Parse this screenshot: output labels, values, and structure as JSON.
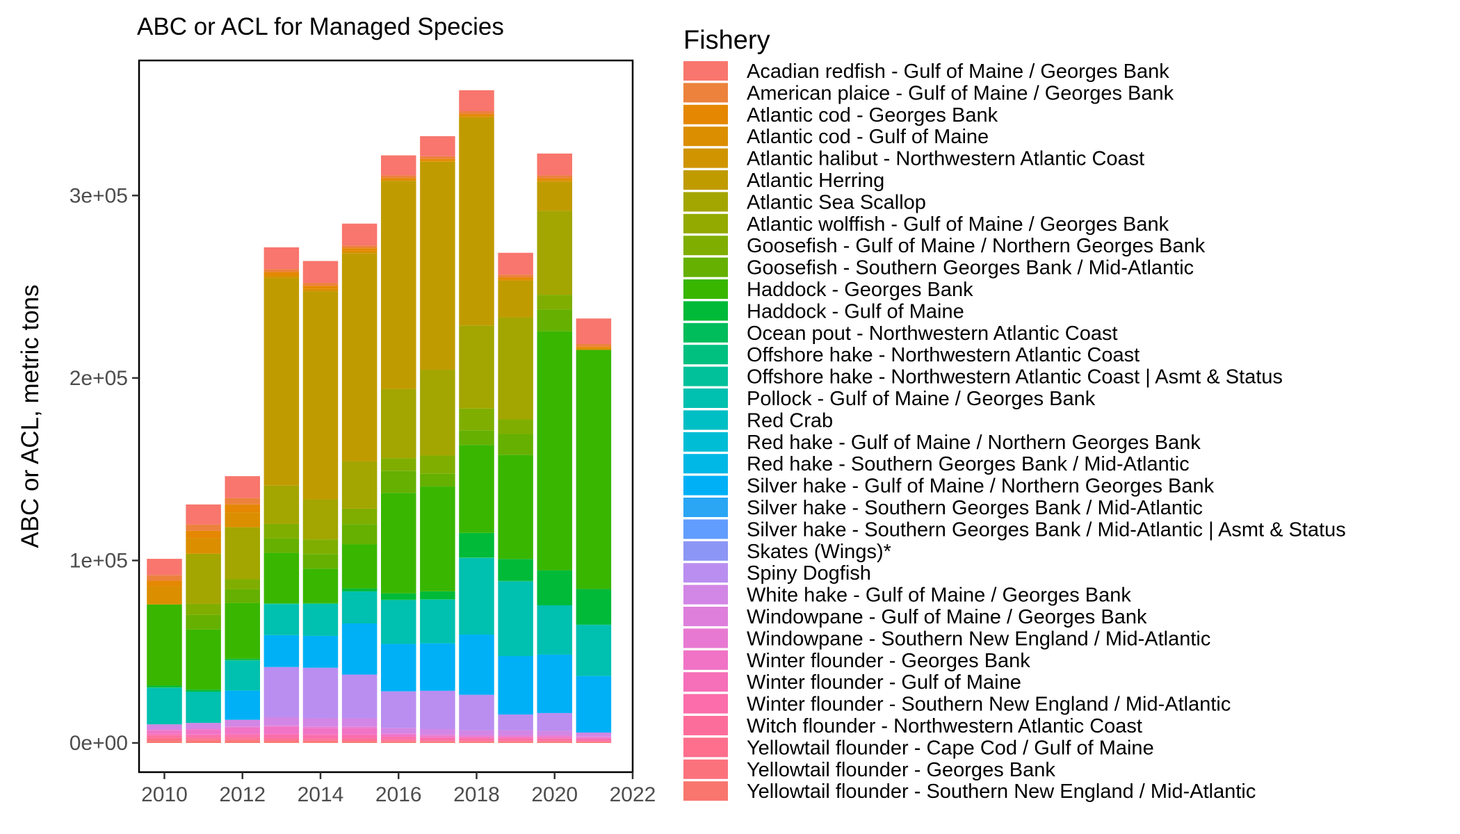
{
  "chart_data": {
    "type": "bar",
    "stacked": true,
    "title": "ABC or ACL for Managed Species",
    "xlabel": "",
    "ylabel": "ABC or ACL, metric tons",
    "x": [
      2010,
      2011,
      2012,
      2013,
      2014,
      2015,
      2016,
      2017,
      2018,
      2019,
      2020,
      2021
    ],
    "xlim": [
      2009.35,
      2022
    ],
    "ylim": [
      -16000,
      374000
    ],
    "x_ticks": [
      2010,
      2012,
      2014,
      2016,
      2018,
      2020,
      2022
    ],
    "x_tick_labels": [
      "2010",
      "2012",
      "2014",
      "2016",
      "2018",
      "2020",
      "2022"
    ],
    "y_ticks": [
      0,
      100000,
      200000,
      300000
    ],
    "y_tick_labels": [
      "0e+00",
      "1e+05",
      "2e+05",
      "3e+05"
    ],
    "grid": false,
    "legend": {
      "title": "Fishery",
      "position": "right"
    },
    "series": [
      {
        "name": "Yellowtail flounder - Southern New England / Mid-Atlantic",
        "color": "#F8766D",
        "values": [
          1000,
          800,
          900,
          700,
          700,
          600,
          500,
          500,
          500,
          500,
          500,
          400
        ]
      },
      {
        "name": "Yellowtail flounder - Georges Bank",
        "color": "#FB727D",
        "values": [
          900,
          800,
          700,
          600,
          500,
          500,
          400,
          300,
          300,
          300,
          300,
          200
        ]
      },
      {
        "name": "Yellowtail flounder - Cape Cod / Gulf of Maine",
        "color": "#FD6F8D",
        "values": [
          900,
          800,
          800,
          800,
          600,
          600,
          500,
          400,
          400,
          400,
          400,
          300
        ]
      },
      {
        "name": "Witch flounder - Northwestern Atlantic Coast",
        "color": "#FD6D9C",
        "values": [
          1100,
          900,
          900,
          900,
          800,
          800,
          600,
          500,
          500,
          500,
          500,
          400
        ]
      },
      {
        "name": "Winter flounder - Southern New England / Mid-Atlantic",
        "color": "#FB6DAB",
        "values": [
          800,
          1000,
          1200,
          1600,
          1700,
          1700,
          1200,
          1000,
          800,
          800,
          700,
          600
        ]
      },
      {
        "name": "Winter flounder - Gulf of Maine",
        "color": "#F66FB9",
        "values": [
          300,
          400,
          500,
          500,
          500,
          500,
          400,
          400,
          400,
          400,
          400,
          400
        ]
      },
      {
        "name": "Winter flounder - Georges Bank",
        "color": "#F073C6",
        "values": [
          1800,
          2500,
          3400,
          3800,
          3500,
          3600,
          1000,
          800,
          600,
          600,
          700,
          600
        ]
      },
      {
        "name": "Windowpane - Southern New England / Mid-Atlantic",
        "color": "#E879D2",
        "values": [
          400,
          400,
          500,
          500,
          500,
          500,
          500,
          500,
          500,
          500,
          500,
          400
        ]
      },
      {
        "name": "Windowpane - Gulf of Maine / Georges Bank",
        "color": "#DE7FDC",
        "values": [
          200,
          200,
          200,
          200,
          200,
          200,
          200,
          200,
          200,
          200,
          200,
          200
        ]
      },
      {
        "name": "White hake - Gulf of Maine / Georges Bank",
        "color": "#D286E5",
        "values": [
          2800,
          3200,
          3600,
          4500,
          4500,
          4500,
          3000,
          3000,
          2700,
          2700,
          2500,
          2200
        ]
      },
      {
        "name": "Spiny Dogfish",
        "color": "#B98EF0",
        "values": [
          0,
          0,
          0,
          27500,
          27700,
          24000,
          20000,
          21000,
          19500,
          8700,
          9700,
          0
        ]
      },
      {
        "name": "Skates (Wings)*",
        "color": "#8C96F5",
        "values": [
          0,
          0,
          0,
          0,
          0,
          0,
          0,
          0,
          0,
          0,
          0,
          0
        ]
      },
      {
        "name": "Silver hake - Southern Georges Bank / Mid-Atlantic | Asmt & Status",
        "color": "#619CFF",
        "values": [
          0,
          0,
          0,
          0,
          0,
          0,
          0,
          0,
          0,
          0,
          0,
          0
        ]
      },
      {
        "name": "Silver hake - Southern Georges Bank / Mid-Atlantic",
        "color": "#2AA6F4",
        "values": [
          0,
          0,
          0,
          0,
          0,
          0,
          0,
          0,
          0,
          0,
          0,
          0
        ]
      },
      {
        "name": "Silver hake - Gulf of Maine / Northern Georges Bank",
        "color": "#00B0F6",
        "values": [
          0,
          0,
          16000,
          17500,
          17500,
          28000,
          26000,
          26000,
          33000,
          32000,
          32000,
          31000
        ]
      },
      {
        "name": "Red hake - Southern Georges Bank / Mid-Atlantic",
        "color": "#00B8E5",
        "values": [
          0,
          0,
          0,
          0,
          0,
          0,
          0,
          0,
          0,
          0,
          0,
          0
        ]
      },
      {
        "name": "Red hake - Gulf of Maine / Northern Georges Bank",
        "color": "#00BDD6",
        "values": [
          0,
          0,
          0,
          0,
          0,
          0,
          0,
          0,
          0,
          0,
          0,
          0
        ]
      },
      {
        "name": "Red Crab",
        "color": "#00BFC4",
        "values": [
          0,
          0,
          0,
          0,
          0,
          0,
          0,
          0,
          0,
          0,
          0,
          0
        ]
      },
      {
        "name": "Pollock - Gulf of Maine / Georges Bank",
        "color": "#00C0AF",
        "values": [
          20000,
          17000,
          16500,
          17000,
          17500,
          17500,
          24000,
          24000,
          42000,
          41000,
          27000,
          28000
        ]
      },
      {
        "name": "Offshore hake - Northwestern Atlantic Coast | Asmt & Status",
        "color": "#00C19A",
        "values": [
          0,
          0,
          0,
          0,
          0,
          0,
          0,
          0,
          0,
          0,
          0,
          0
        ]
      },
      {
        "name": "Offshore hake - Northwestern Atlantic Coast",
        "color": "#00C080",
        "values": [
          0,
          0,
          0,
          0,
          0,
          0,
          0,
          0,
          0,
          0,
          0,
          0
        ]
      },
      {
        "name": "Ocean pout - Northwestern Atlantic Coast",
        "color": "#00BD5C",
        "values": [
          200,
          200,
          200,
          200,
          200,
          200,
          200,
          200,
          200,
          200,
          200,
          200
        ]
      },
      {
        "name": "Haddock - Gulf of Maine",
        "color": "#00BA38",
        "values": [
          1000,
          1000,
          800,
          200,
          200,
          1500,
          3500,
          4300,
          13500,
          12000,
          19000,
          19500
        ]
      },
      {
        "name": "Haddock - Georges Bank",
        "color": "#39B600",
        "values": [
          44500,
          33000,
          30500,
          27700,
          18900,
          24200,
          55000,
          57400,
          48200,
          57000,
          131000,
          131000
        ]
      },
      {
        "name": "Goosefish - Southern Georges Bank / Mid-Atlantic",
        "color": "#65B000",
        "values": [
          0,
          8000,
          7500,
          7800,
          8000,
          11000,
          12000,
          7000,
          8000,
          11500,
          12000,
          0
        ]
      },
      {
        "name": "Goosefish - Gulf of Maine / Northern Georges Bank",
        "color": "#7FAE00",
        "values": [
          0,
          6000,
          5500,
          8000,
          8000,
          8500,
          7000,
          10000,
          12000,
          8000,
          8000,
          0
        ]
      },
      {
        "name": "Atlantic wolffish - Gulf of Maine / Georges Bank",
        "color": "#93AA00",
        "values": [
          0,
          0,
          0,
          0,
          0,
          0,
          0,
          0,
          0,
          0,
          0,
          0
        ]
      },
      {
        "name": "Atlantic Sea Scallop",
        "color": "#A3A500",
        "values": [
          0,
          27500,
          28500,
          21000,
          22000,
          26000,
          38000,
          47000,
          45500,
          56000,
          46000,
          0
        ]
      },
      {
        "name": "Atlantic Herring",
        "color": "#C09B00",
        "values": [
          0,
          0,
          0,
          114000,
          114000,
          114000,
          114000,
          114000,
          114000,
          20000,
          16000,
          0
        ]
      },
      {
        "name": "Atlantic halibut - Northwestern Atlantic Coast",
        "color": "#CF9400",
        "values": [
          0,
          0,
          0,
          0,
          0,
          0,
          0,
          0,
          0,
          0,
          0,
          0
        ]
      },
      {
        "name": "Atlantic cod - Gulf of Maine",
        "color": "#DB8E00",
        "values": [
          10000,
          8500,
          8000,
          1500,
          1500,
          1300,
          500,
          500,
          700,
          700,
          800,
          1000
        ]
      },
      {
        "name": "Atlantic cod - Georges Bank",
        "color": "#E58700",
        "values": [
          3000,
          4000,
          4500,
          1500,
          1500,
          1400,
          1000,
          1000,
          1000,
          1000,
          1000,
          800
        ]
      },
      {
        "name": "American plaice - Gulf of Maine / Georges Bank",
        "color": "#EC823C",
        "values": [
          3000,
          3500,
          3500,
          1600,
          1600,
          1500,
          1500,
          1500,
          1700,
          1600,
          1600,
          1400
        ]
      },
      {
        "name": "Acadian redfish - Gulf of Maine / Georges Bank",
        "color": "#F8766D",
        "values": [
          9000,
          11000,
          12000,
          12000,
          12000,
          12000,
          11000,
          11000,
          11500,
          12000,
          12000,
          14000
        ]
      }
    ]
  }
}
